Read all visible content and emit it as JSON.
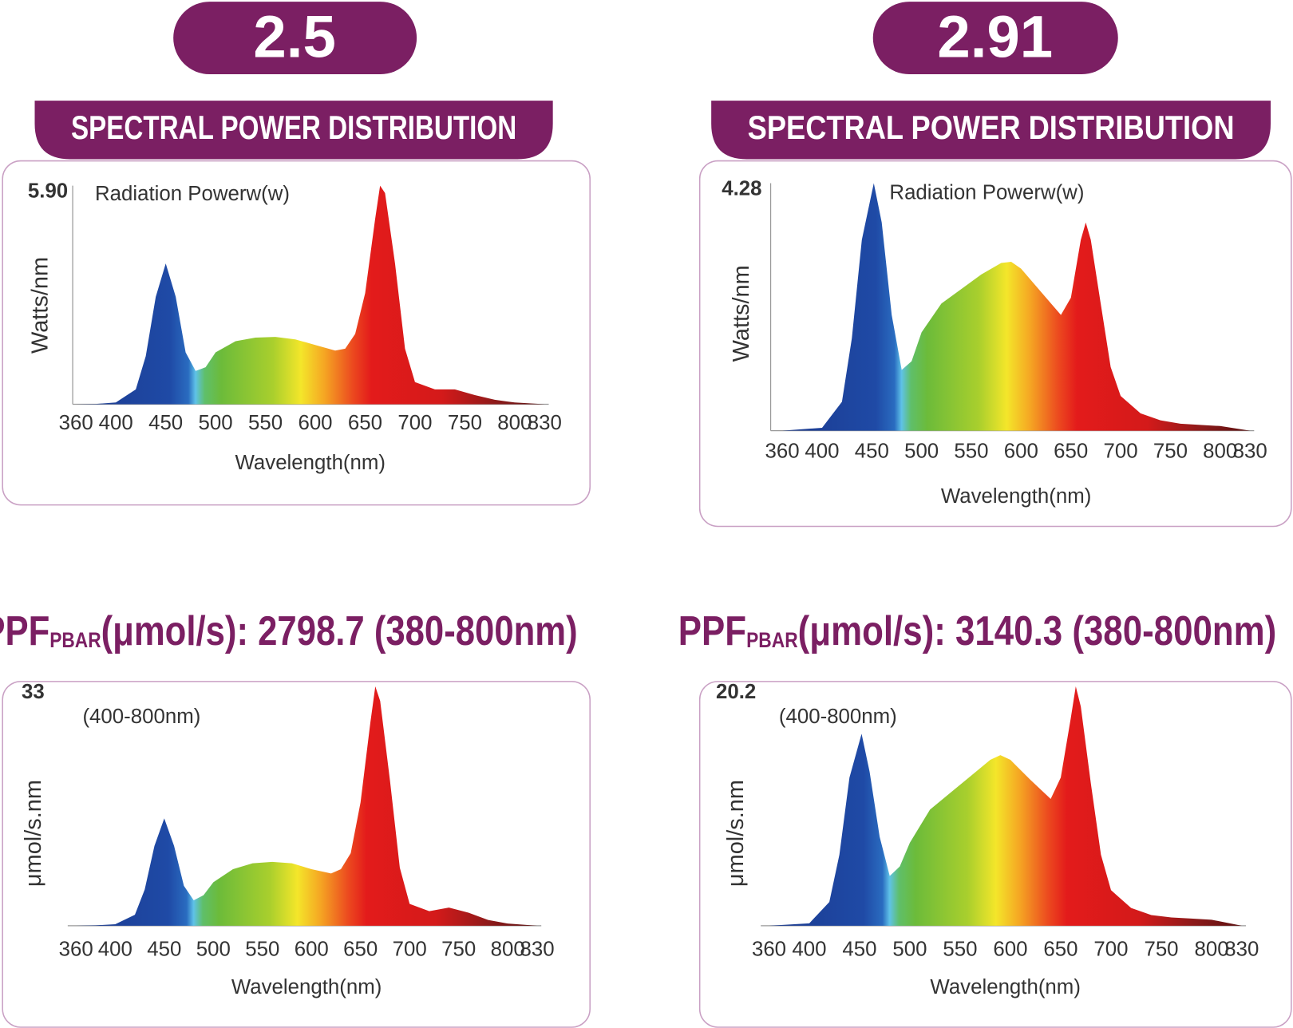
{
  "badges": [
    "2.5",
    "2.91"
  ],
  "headings": [
    "SPECTRAL POWER DISTRIBUTION",
    "SPECTRAL POWER DISTRIBUTION"
  ],
  "ppf": [
    {
      "prefix": "PPF",
      "sub": "PBAR",
      "text": "(μmol/s): 2798.7 (380-800nm)"
    },
    {
      "prefix": "PPF",
      "sub": "PBAR",
      "text": "(μmol/s): 3140.3 (380-800nm)"
    }
  ],
  "chart_data": [
    {
      "type": "area",
      "annotation": "Radiation Powerw(w)",
      "ylabel": "Watts/nm",
      "xlabel": "Wavelength(nm)",
      "x": [
        360,
        380,
        400,
        420,
        430,
        440,
        450,
        460,
        470,
        480,
        490,
        500,
        520,
        540,
        560,
        580,
        600,
        620,
        630,
        640,
        650,
        660,
        665,
        670,
        680,
        690,
        700,
        720,
        740,
        760,
        780,
        800,
        830
      ],
      "values": [
        0,
        0.01,
        0.05,
        0.4,
        1.3,
        2.9,
        3.8,
        2.9,
        1.4,
        0.9,
        1.0,
        1.4,
        1.7,
        1.8,
        1.82,
        1.75,
        1.6,
        1.45,
        1.5,
        1.9,
        3.0,
        5.0,
        5.9,
        5.7,
        3.8,
        1.5,
        0.6,
        0.4,
        0.4,
        0.25,
        0.12,
        0.05,
        0
      ],
      "xlim": [
        360,
        830
      ],
      "xticks": [
        360,
        400,
        450,
        500,
        550,
        600,
        650,
        700,
        750,
        800,
        830
      ],
      "ylim": [
        0,
        5.9
      ],
      "yticks": [
        {
          "value": 5.9,
          "label": "5.90"
        }
      ]
    },
    {
      "type": "area",
      "annotation": "Radiation Powerw(w)",
      "ylabel": "Watts/nm",
      "xlabel": "Wavelength(nm)",
      "x": [
        360,
        400,
        420,
        430,
        440,
        452,
        460,
        470,
        480,
        490,
        500,
        520,
        540,
        560,
        580,
        590,
        600,
        620,
        640,
        650,
        660,
        665,
        670,
        680,
        690,
        700,
        720,
        740,
        760,
        780,
        800,
        830
      ],
      "values": [
        0,
        0.05,
        0.5,
        1.6,
        3.3,
        4.28,
        3.6,
        2.0,
        1.05,
        1.2,
        1.7,
        2.2,
        2.45,
        2.7,
        2.9,
        2.92,
        2.8,
        2.4,
        2.0,
        2.3,
        3.3,
        3.6,
        3.3,
        2.2,
        1.1,
        0.6,
        0.3,
        0.18,
        0.12,
        0.1,
        0.08,
        0
      ],
      "xlim": [
        360,
        830
      ],
      "xticks": [
        360,
        400,
        450,
        500,
        550,
        600,
        650,
        700,
        750,
        800,
        830
      ],
      "ylim": [
        0,
        4.28
      ],
      "yticks": [
        4.28
      ]
    },
    {
      "type": "area",
      "annotation": "(400-800nm)",
      "ylabel": "μmol/s.nm",
      "xlabel": "Wavelength(nm)",
      "x": [
        360,
        380,
        400,
        420,
        430,
        440,
        450,
        460,
        470,
        480,
        490,
        500,
        520,
        540,
        560,
        580,
        600,
        620,
        630,
        640,
        650,
        660,
        665,
        670,
        680,
        690,
        700,
        720,
        740,
        760,
        780,
        800,
        830
      ],
      "values": [
        0,
        0.05,
        0.2,
        1.5,
        5,
        11,
        14.8,
        11,
        5.5,
        3.5,
        4.2,
        6,
        7.8,
        8.6,
        8.8,
        8.6,
        7.8,
        7.2,
        7.8,
        10,
        17,
        28,
        33,
        31,
        20,
        8,
        3,
        2,
        2.5,
        1.8,
        0.8,
        0.3,
        0
      ],
      "xlim": [
        360,
        830
      ],
      "xticks": [
        360,
        400,
        450,
        500,
        550,
        600,
        650,
        700,
        750,
        800,
        830
      ],
      "ylim": [
        0,
        33
      ],
      "yticks": [
        33
      ]
    },
    {
      "type": "area",
      "annotation": "(400-800nm)",
      "ylabel": "μmol/s.nm",
      "xlabel": "Wavelength(nm)",
      "x": [
        360,
        400,
        420,
        430,
        440,
        452,
        460,
        470,
        480,
        490,
        500,
        520,
        540,
        560,
        580,
        590,
        600,
        620,
        640,
        650,
        660,
        665,
        670,
        680,
        690,
        700,
        720,
        740,
        760,
        780,
        800,
        830
      ],
      "values": [
        0,
        0.2,
        2,
        6,
        12.5,
        16.2,
        13,
        7.5,
        4.2,
        5,
        7,
        9.8,
        11.2,
        12.6,
        14,
        14.4,
        14,
        12.3,
        10.7,
        12.5,
        17.5,
        20.2,
        18.5,
        12,
        6,
        3,
        1.5,
        0.9,
        0.7,
        0.6,
        0.5,
        0
      ],
      "xlim": [
        360,
        830
      ],
      "xticks": [
        360,
        400,
        450,
        500,
        550,
        600,
        650,
        700,
        750,
        800,
        830
      ],
      "ylim": [
        0,
        20.2
      ],
      "yticks": [
        {
          "value": 20.2,
          "label": "20.2"
        }
      ]
    }
  ]
}
